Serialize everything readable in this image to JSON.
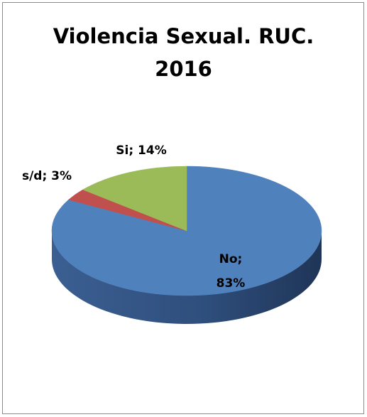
{
  "chart_data": {
    "type": "pie",
    "title_lines": [
      "Violencia Sexual. RUC.",
      "2016"
    ],
    "slices": [
      {
        "name": "No",
        "value": 83,
        "color": "#4f81bd",
        "side": "#355a8c",
        "label": "No;",
        "label2": "83%"
      },
      {
        "name": "s/d",
        "value": 3,
        "color": "#c0504d",
        "side": "#8c3533",
        "label": "s/d; 3%"
      },
      {
        "name": "Si",
        "value": 14,
        "color": "#9bbb59",
        "side": "#6f8a3c",
        "label": "Si; 14%"
      }
    ],
    "unit": "%",
    "three_d": true,
    "legend": "none"
  }
}
